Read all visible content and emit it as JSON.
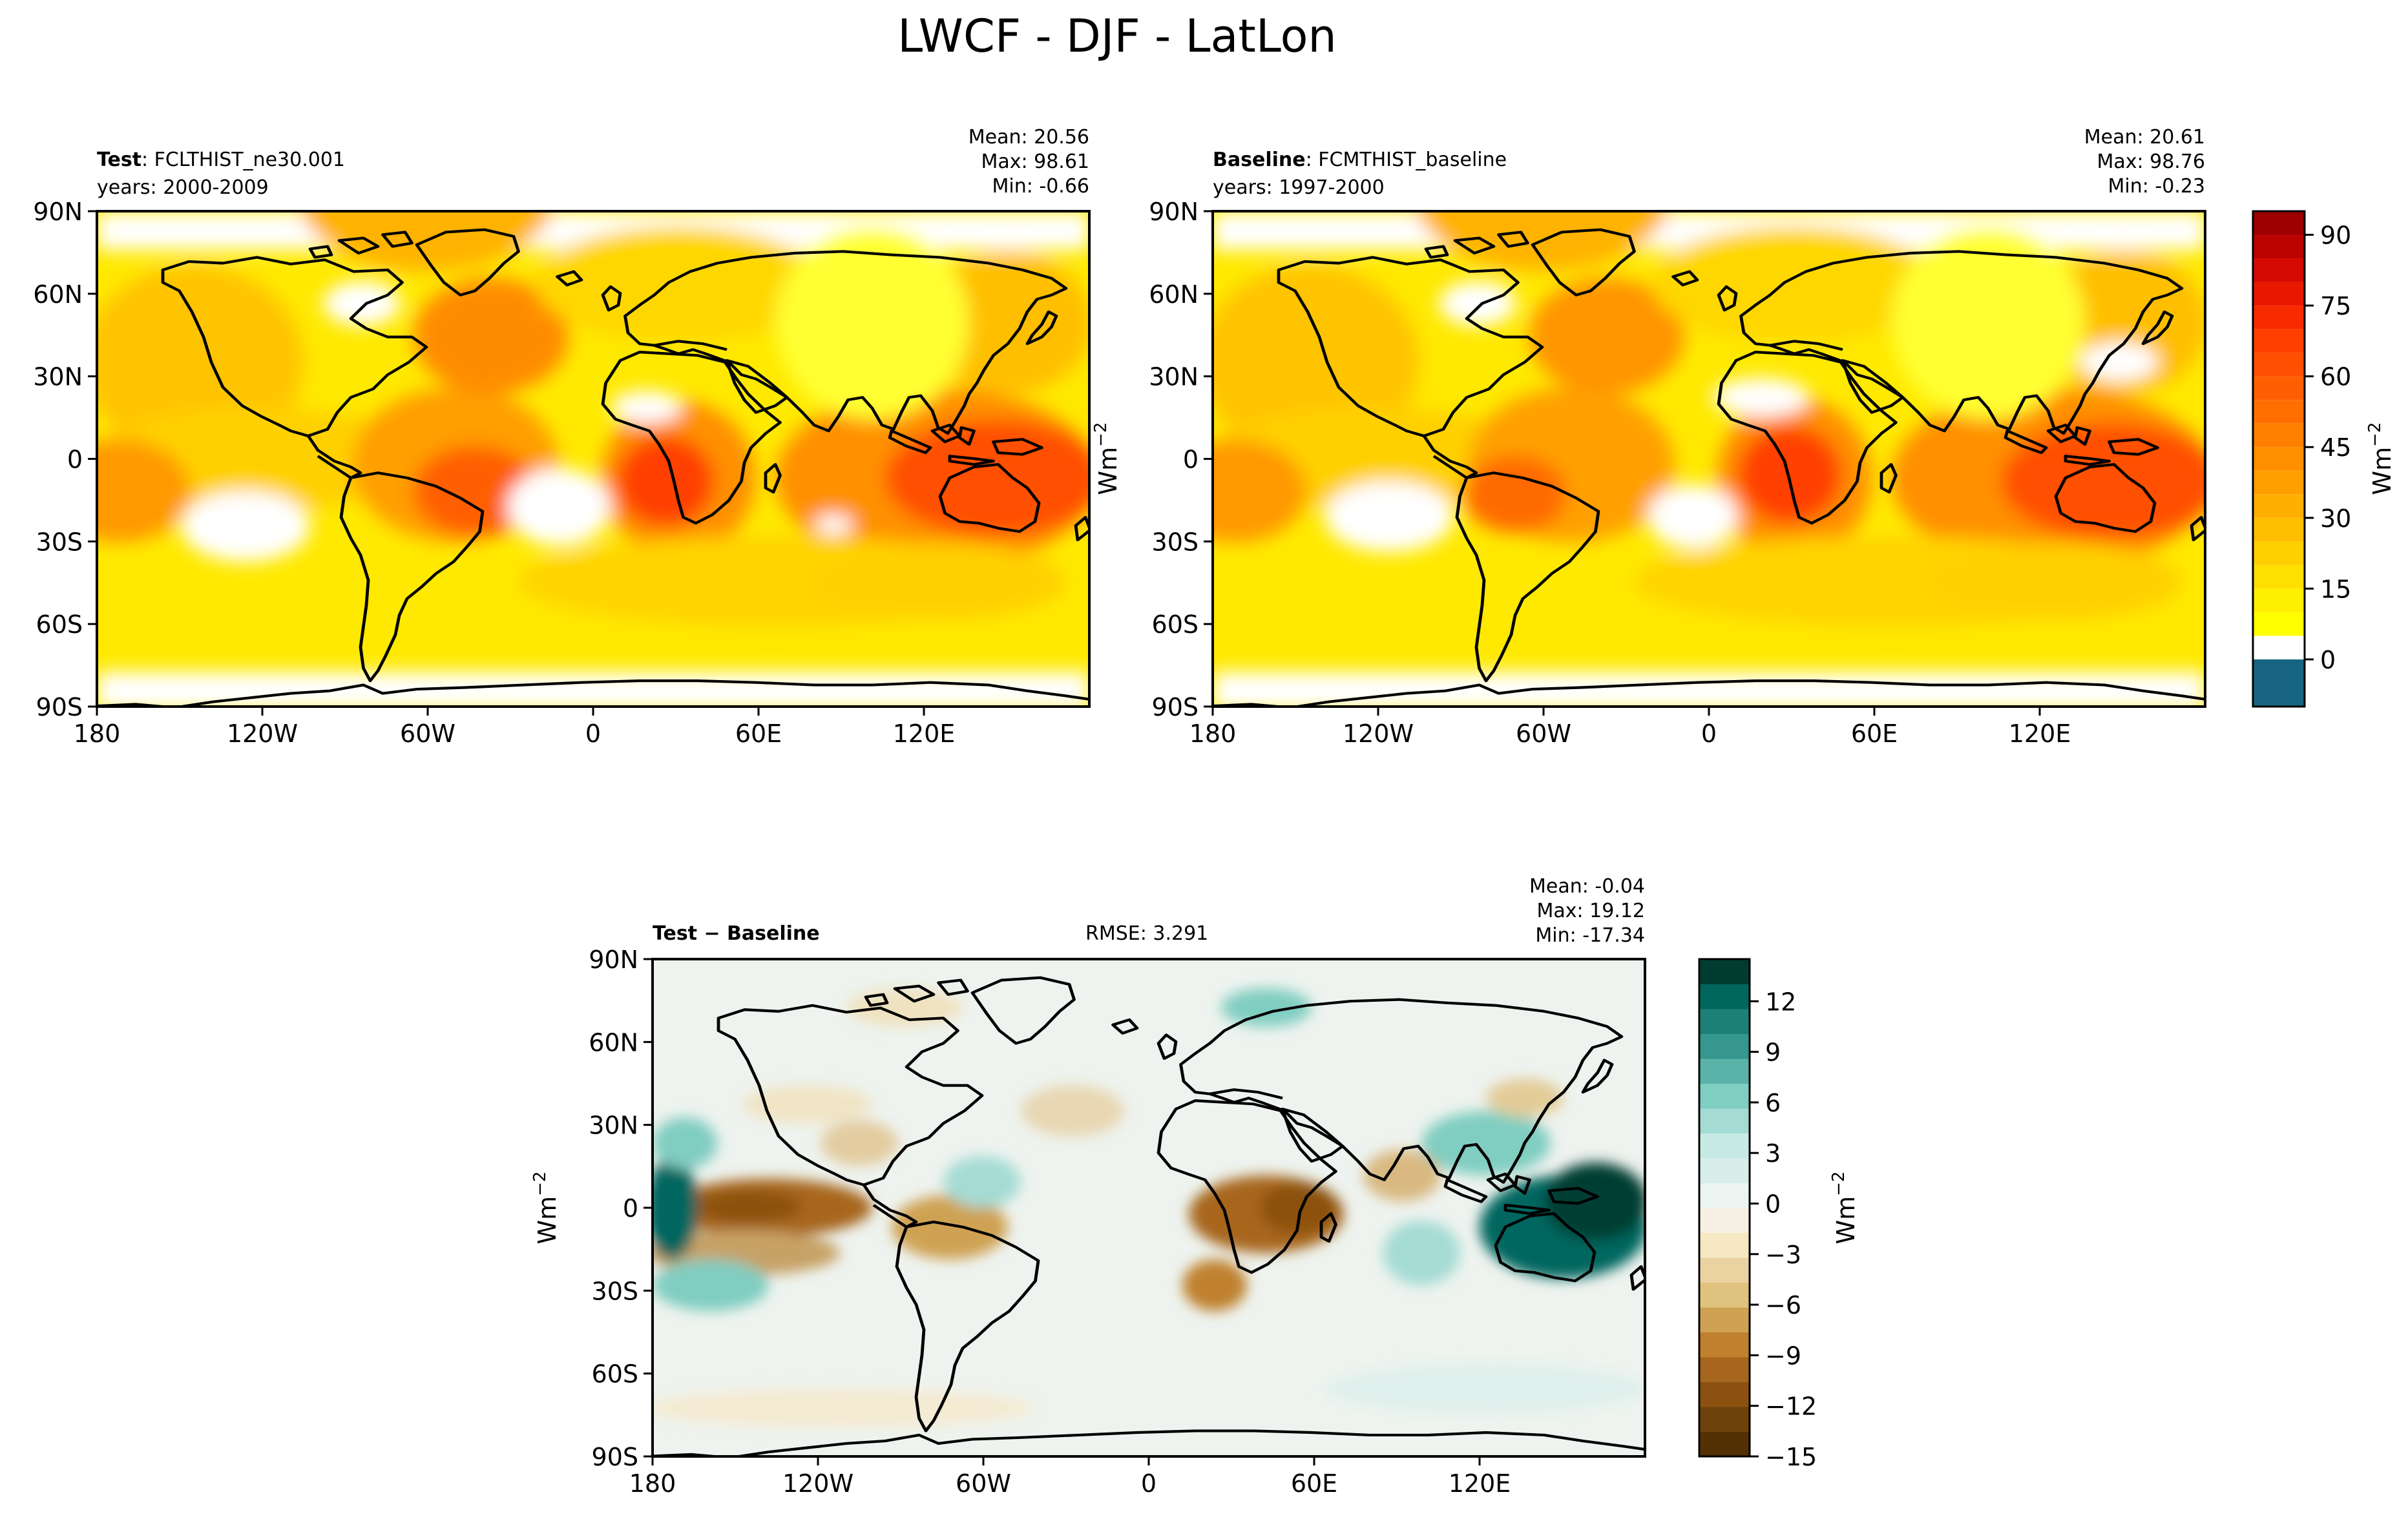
{
  "figure_title": "LWCF - DJF - LatLon",
  "units_label": "Wm",
  "units_exponent": "−2",
  "chart_data": [
    {
      "type": "heatmap",
      "name": "test",
      "title_bold": "Test",
      "title_rest": ": FCLTHIST_ne30.001",
      "years": "years: 2000-2009",
      "stats": {
        "mean": "Mean: 20.56",
        "max": "Max: 98.61",
        "min": "Min: -0.66"
      },
      "xticks": [
        "180",
        "120W",
        "60W",
        "0",
        "60E",
        "120E"
      ],
      "yticks": [
        "90N",
        "60N",
        "30N",
        "0",
        "30S",
        "60S",
        "90S"
      ],
      "xlim": [
        -180,
        180
      ],
      "ylim": [
        -90,
        90
      ]
    },
    {
      "type": "heatmap",
      "name": "baseline",
      "title_bold": "Baseline",
      "title_rest": ": FCMTHIST_baseline",
      "years": "years: 1997-2000",
      "stats": {
        "mean": "Mean: 20.61",
        "max": "Max: 98.76",
        "min": "Min: -0.23"
      },
      "xticks": [
        "180",
        "120W",
        "60W",
        "0",
        "60E",
        "120E"
      ],
      "yticks": [
        "90N",
        "60N",
        "30N",
        "0",
        "30S",
        "60S",
        "90S"
      ],
      "xlim": [
        -180,
        180
      ],
      "ylim": [
        -90,
        90
      ],
      "colorbar": {
        "ticks": [
          "0",
          "15",
          "30",
          "45",
          "60",
          "75",
          "90"
        ],
        "tick_values": [
          0,
          15,
          30,
          45,
          60,
          75,
          90
        ],
        "levels": [
          -10,
          -0.001,
          5,
          10,
          15,
          20,
          25,
          30,
          35,
          40,
          45,
          50,
          55,
          60,
          65,
          70,
          75,
          80,
          85,
          90,
          95
        ],
        "colors": [
          "#176582",
          "#ffffff",
          "#ffff00",
          "#ffef00",
          "#ffdf00",
          "#ffcf00",
          "#ffbf00",
          "#ffaf00",
          "#ff9f00",
          "#ff8f00",
          "#ff7f00",
          "#ff6f00",
          "#ff5f00",
          "#ff4f00",
          "#ff3f00",
          "#f82a00",
          "#e81800",
          "#d40a00",
          "#bb0300",
          "#9c0000"
        ]
      }
    },
    {
      "type": "heatmap",
      "name": "difference",
      "title_bold": "Test − Baseline",
      "rmse": "RMSE: 3.291",
      "stats": {
        "mean": "Mean: -0.04",
        "max": "Max: 19.12",
        "min": "Min: -17.34"
      },
      "xticks": [
        "180",
        "120W",
        "60W",
        "0",
        "60E",
        "120E"
      ],
      "yticks": [
        "90N",
        "60N",
        "30N",
        "0",
        "30S",
        "60S",
        "90S"
      ],
      "xlim": [
        -180,
        180
      ],
      "ylim": [
        -90,
        90
      ],
      "colorbar": {
        "ticks": [
          "−15",
          "−12",
          "−9",
          "−6",
          "−3",
          "0",
          "3",
          "6",
          "9",
          "12"
        ],
        "tick_values": [
          -15,
          -12,
          -9,
          -6,
          -3,
          0,
          3,
          6,
          9,
          12
        ],
        "range": [
          -15,
          14.5
        ],
        "colors": [
          "#543005",
          "#6f420c",
          "#8c5110",
          "#a7661d",
          "#bf812d",
          "#cfa253",
          "#dfc27d",
          "#ead3a1",
          "#f6e8c3",
          "#f5f0e3",
          "#ecf4f2",
          "#d7eeea",
          "#c7eae5",
          "#a4dbd4",
          "#80cdc1",
          "#5ab2a8",
          "#35978f",
          "#1c8078",
          "#01665e",
          "#003c30"
        ]
      }
    }
  ]
}
